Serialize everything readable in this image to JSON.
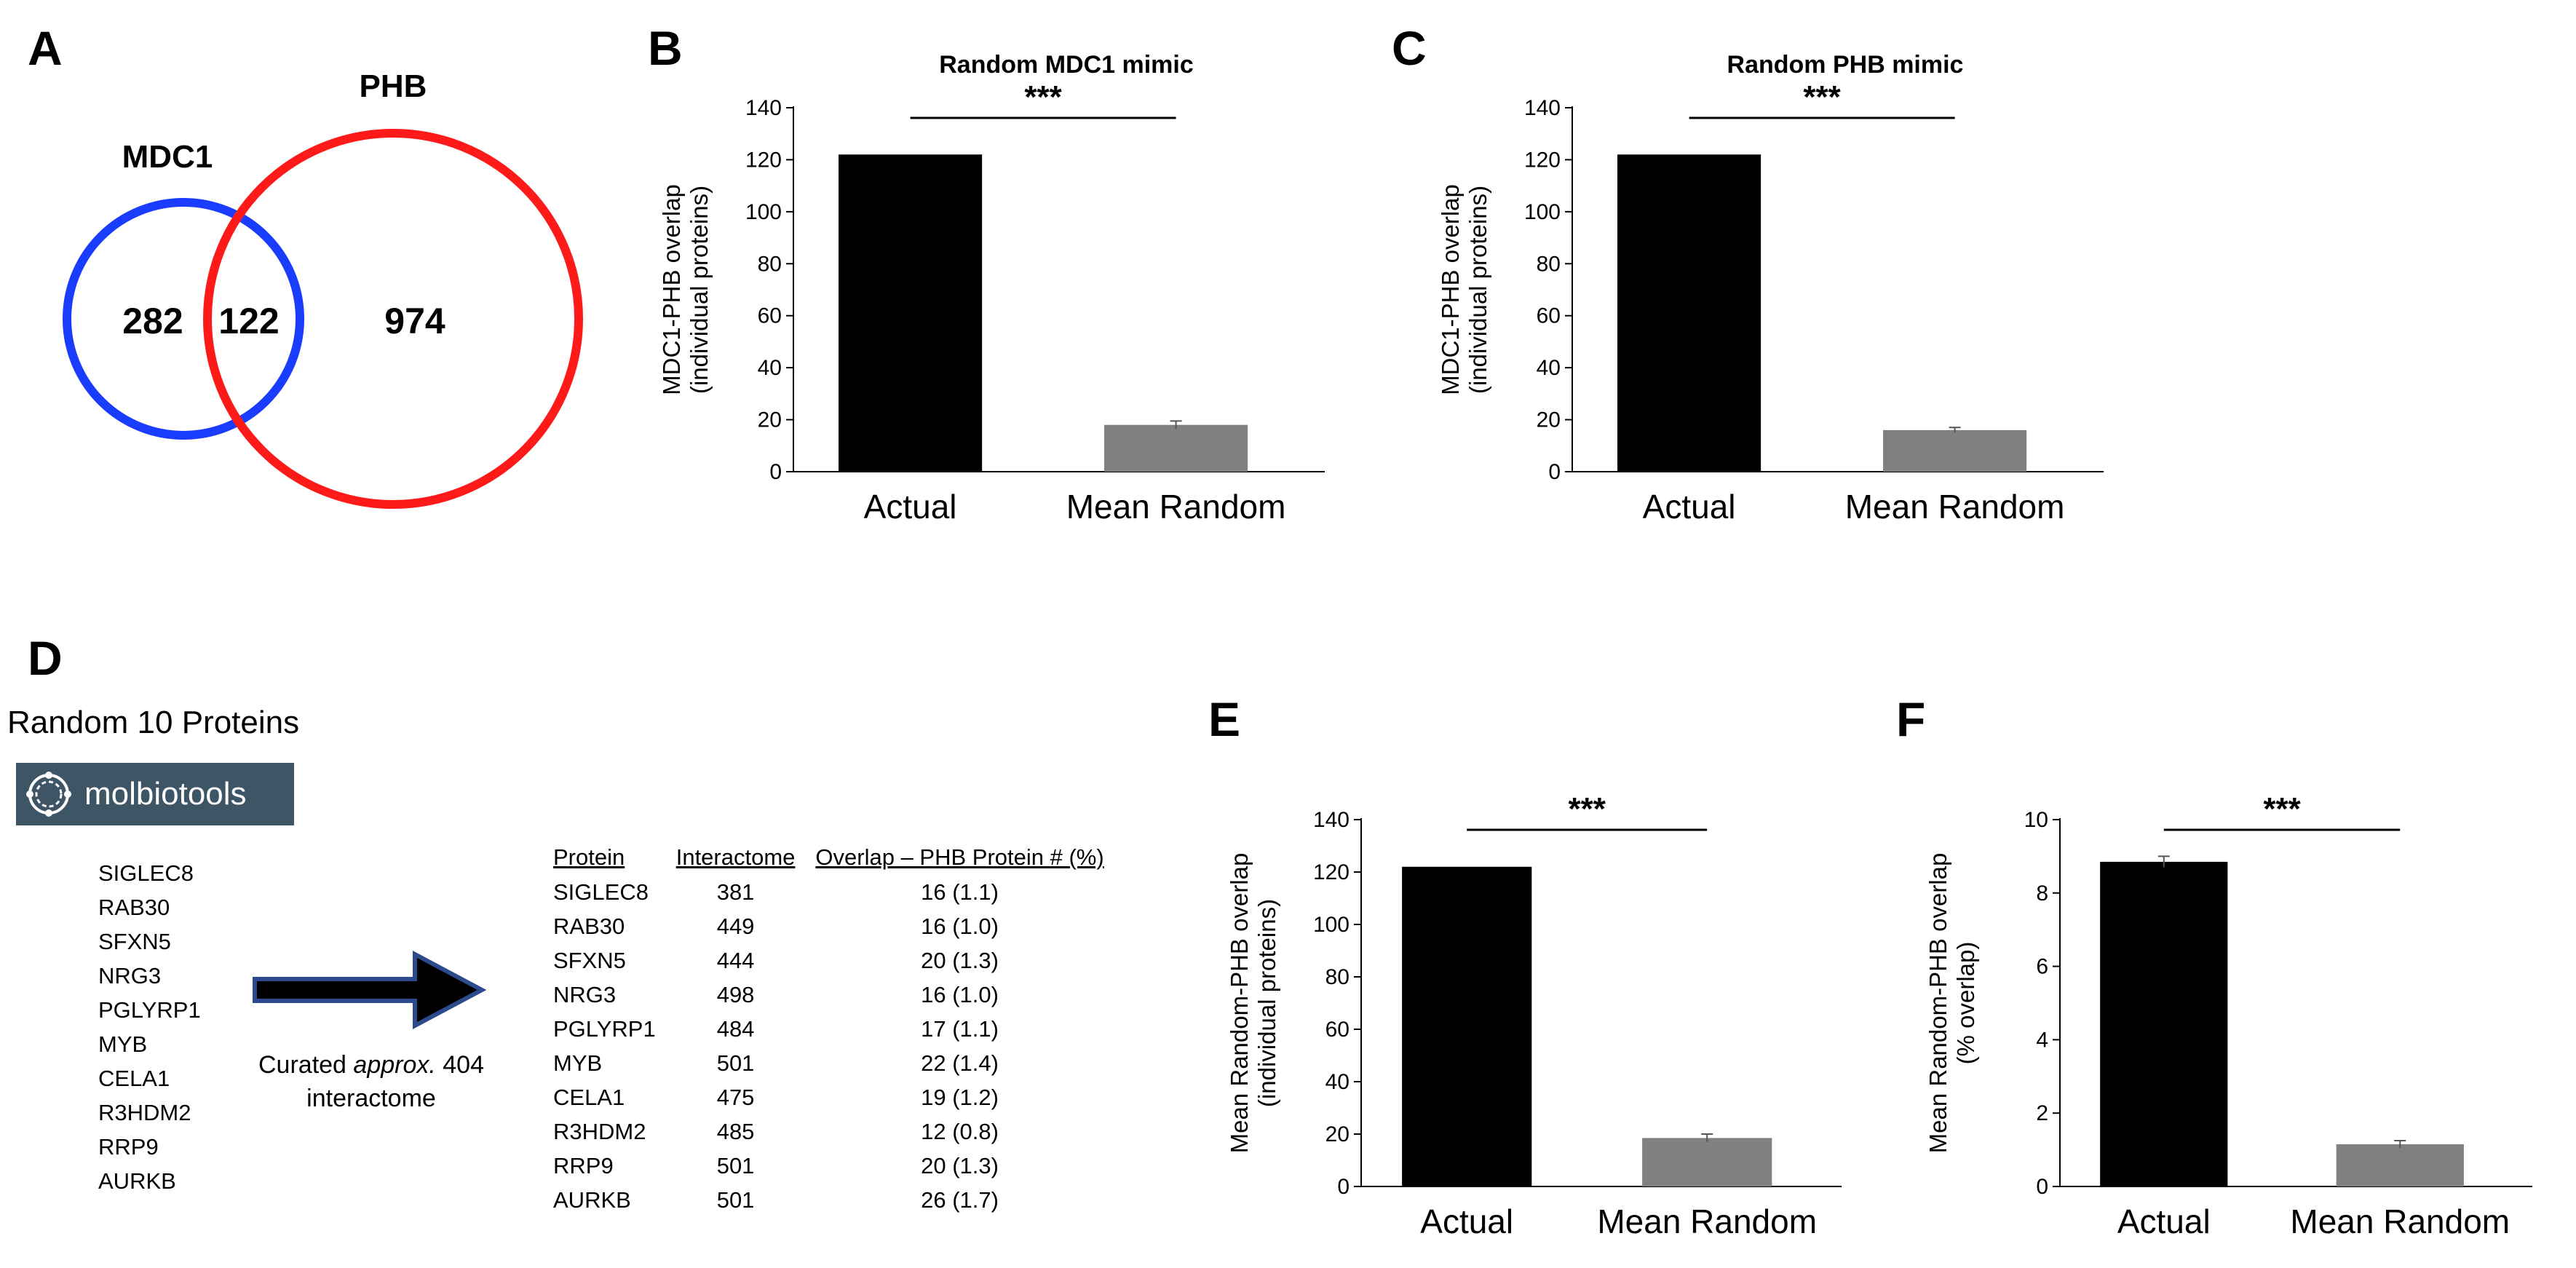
{
  "panels": {
    "A": {
      "letter": "A",
      "venn": {
        "left_label": "MDC1",
        "right_label": "PHB",
        "left_only": "282",
        "overlap": "122",
        "right_only": "974",
        "left_color": "#1a3cff",
        "right_color": "#ff1a1a"
      }
    },
    "B": {
      "letter": "B"
    },
    "C": {
      "letter": "C"
    },
    "D": {
      "letter": "D",
      "title": "Random 10 Proteins",
      "tool_name": "molbiotools",
      "genes": [
        "SIGLEC8",
        "RAB30",
        "SFXN5",
        "NRG3",
        "PGLYRP1",
        "MYB",
        "CELA1",
        "R3HDM2",
        "RRP9",
        "AURKB"
      ],
      "caption_line1_pre": "Curated ",
      "caption_line1_em": "approx.",
      "caption_line1_post": " 404",
      "caption_line2": "interactome",
      "table": {
        "headers": [
          "Protein",
          "Interactome",
          "Overlap – PHB Protein # (%)"
        ],
        "rows": [
          [
            "SIGLEC8",
            "381",
            "16 (1.1)"
          ],
          [
            "RAB30",
            "449",
            "16 (1.0)"
          ],
          [
            "SFXN5",
            "444",
            "20 (1.3)"
          ],
          [
            "NRG3",
            "498",
            "16 (1.0)"
          ],
          [
            "PGLYRP1",
            "484",
            "17 (1.1)"
          ],
          [
            "MYB",
            "501",
            "22 (1.4)"
          ],
          [
            "CELA1",
            "475",
            "19 (1.2)"
          ],
          [
            "R3HDM2",
            "485",
            "12 (0.8)"
          ],
          [
            "RRP9",
            "501",
            "20 (1.3)"
          ],
          [
            "AURKB",
            "501",
            "26 (1.7)"
          ]
        ]
      }
    },
    "E": {
      "letter": "E"
    },
    "F": {
      "letter": "F"
    }
  },
  "chart_data": [
    {
      "id": "B",
      "type": "bar",
      "title": "Random MDC1 mimic",
      "categories": [
        "Actual",
        "Mean Random"
      ],
      "values": [
        122,
        18
      ],
      "errors": [
        0,
        1.5
      ],
      "colors": [
        "#000000",
        "#808080"
      ],
      "ylabel_lines": [
        "MDC1-PHB overlap",
        "(individual proteins)"
      ],
      "ylim": [
        0,
        140
      ],
      "yticks": [
        0,
        20,
        40,
        60,
        80,
        100,
        120,
        140
      ],
      "significance": "***"
    },
    {
      "id": "C",
      "type": "bar",
      "title": "Random PHB mimic",
      "categories": [
        "Actual",
        "Mean Random"
      ],
      "values": [
        122,
        16
      ],
      "errors": [
        0,
        1
      ],
      "colors": [
        "#000000",
        "#808080"
      ],
      "ylabel_lines": [
        "MDC1-PHB overlap",
        "(individual proteins)"
      ],
      "ylim": [
        0,
        140
      ],
      "yticks": [
        0,
        20,
        40,
        60,
        80,
        100,
        120,
        140
      ],
      "significance": "***"
    },
    {
      "id": "E",
      "type": "bar",
      "title": "",
      "categories": [
        "Actual",
        "Mean Random"
      ],
      "values": [
        122,
        18.5
      ],
      "errors": [
        0,
        1.5
      ],
      "colors": [
        "#000000",
        "#808080"
      ],
      "ylabel_lines": [
        "Mean Random-PHB overlap",
        "(individual proteins)"
      ],
      "ylim": [
        0,
        140
      ],
      "yticks": [
        0,
        20,
        40,
        60,
        80,
        100,
        120,
        140
      ],
      "significance": "***"
    },
    {
      "id": "F",
      "type": "bar",
      "title": "",
      "categories": [
        "Actual",
        "Mean Random"
      ],
      "values": [
        8.85,
        1.15
      ],
      "errors": [
        0.15,
        0.1
      ],
      "colors": [
        "#000000",
        "#808080"
      ],
      "ylabel_lines": [
        "Mean Random-PHB overlap",
        "(% overlap)"
      ],
      "ylim": [
        0,
        10
      ],
      "yticks": [
        0,
        2,
        4,
        6,
        8,
        10
      ],
      "significance": "***"
    }
  ]
}
